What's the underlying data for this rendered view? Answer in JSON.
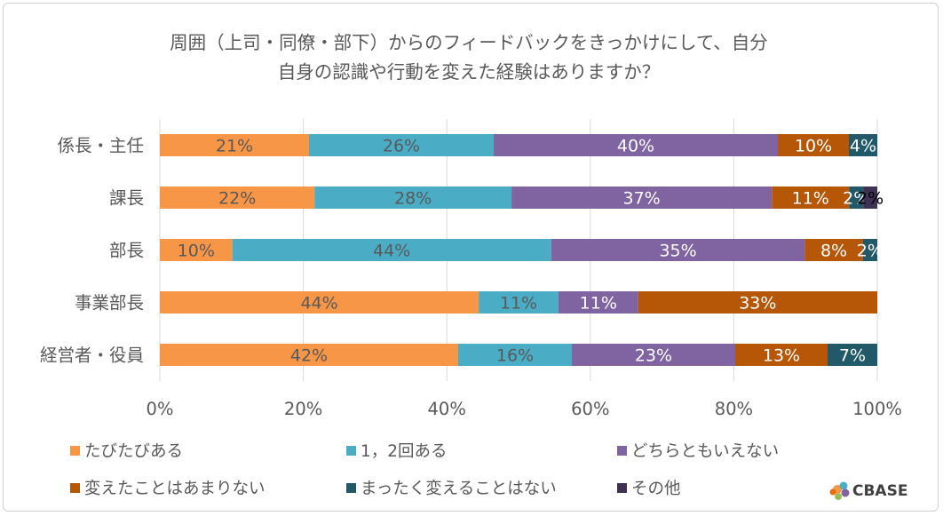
{
  "chart_data": {
    "type": "bar",
    "orientation": "horizontal",
    "stacked": "percent",
    "title_lines": [
      "周囲（上司・同僚・部下）からのフィードバックをきっかけにして、自分",
      "自身の認識や行動を変えた経験はありますか？"
    ],
    "categories": [
      "係長・主任",
      "課長",
      "部長",
      "事業部長",
      "経営者・役員"
    ],
    "series": [
      {
        "name": "たびたびある",
        "color": "#F79646",
        "label_color": "#595959",
        "values": [
          21,
          22,
          10,
          44,
          42
        ]
      },
      {
        "name": "1，2回ある",
        "color": "#4BACC6",
        "label_color": "#595959",
        "values": [
          26,
          28,
          44,
          11,
          16
        ]
      },
      {
        "name": "どちらともいえない",
        "color": "#8064A2",
        "label_color": "#ffffff",
        "values": [
          40,
          37,
          35,
          11,
          23
        ]
      },
      {
        "name": "変えたことはあまりない",
        "color": "#B65708",
        "label_color": "#ffffff",
        "values": [
          10,
          11,
          8,
          33,
          13
        ]
      },
      {
        "name": "まったく変えることはない",
        "color": "#215968",
        "label_color": "#ffffff",
        "values": [
          4,
          2,
          2,
          0,
          7
        ]
      },
      {
        "name": "その他",
        "color": "#3F3151",
        "label_color": "#000000",
        "values": [
          0,
          2,
          0,
          0,
          0
        ]
      }
    ],
    "xlim": [
      0,
      1
    ],
    "xticks": [
      0,
      0.2,
      0.4,
      0.6,
      0.8,
      1.0
    ],
    "xtick_labels": [
      "0%",
      "20%",
      "40%",
      "60%",
      "80%",
      "100%"
    ],
    "gridlines": true,
    "legend_position": "bottom"
  },
  "brand": {
    "name": "CBASE"
  }
}
